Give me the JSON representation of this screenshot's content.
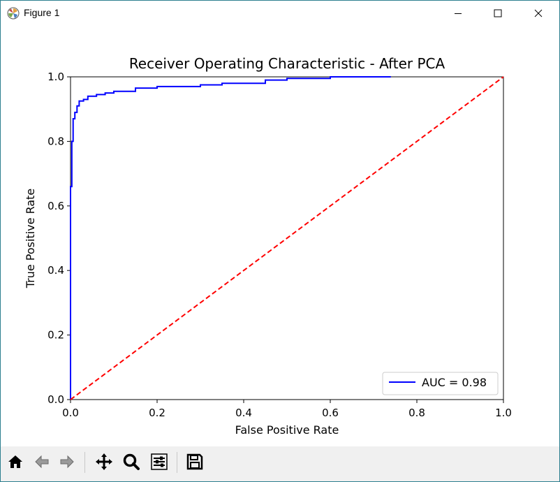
{
  "window": {
    "title": "Figure 1",
    "controls": [
      "minimize",
      "maximize",
      "close"
    ]
  },
  "toolbar": {
    "buttons": [
      "home-icon",
      "back-icon",
      "forward-icon",
      "pan-icon",
      "zoom-icon",
      "configure-subplots-icon",
      "save-icon"
    ]
  },
  "chart_data": {
    "type": "line",
    "title": "Receiver Operating Characteristic - After PCA",
    "xlabel": "False Positive Rate",
    "ylabel": "True Positive Rate",
    "xlim": [
      0.0,
      1.0
    ],
    "ylim": [
      0.0,
      1.0
    ],
    "xticks": [
      "0.0",
      "0.2",
      "0.4",
      "0.6",
      "0.8",
      "1.0"
    ],
    "yticks": [
      "0.0",
      "0.2",
      "0.4",
      "0.6",
      "0.8",
      "1.0"
    ],
    "grid": false,
    "legend_position": "lower-right",
    "series": [
      {
        "name": "AUC = 0.98",
        "color": "#0000ff",
        "style": "solid",
        "x": [
          0.0,
          0.0,
          0.003,
          0.003,
          0.006,
          0.006,
          0.01,
          0.01,
          0.015,
          0.015,
          0.02,
          0.02,
          0.03,
          0.03,
          0.04,
          0.04,
          0.06,
          0.06,
          0.08,
          0.08,
          0.1,
          0.1,
          0.15,
          0.15,
          0.2,
          0.2,
          0.3,
          0.3,
          0.35,
          0.35,
          0.45,
          0.45,
          0.5,
          0.5,
          0.6,
          0.6,
          0.74
        ],
        "y": [
          0.0,
          0.66,
          0.66,
          0.8,
          0.8,
          0.87,
          0.87,
          0.89,
          0.89,
          0.91,
          0.91,
          0.925,
          0.925,
          0.93,
          0.93,
          0.94,
          0.94,
          0.945,
          0.945,
          0.95,
          0.95,
          0.955,
          0.955,
          0.965,
          0.965,
          0.97,
          0.97,
          0.975,
          0.975,
          0.98,
          0.98,
          0.99,
          0.99,
          0.995,
          0.995,
          1.0,
          1.0
        ]
      },
      {
        "name": "",
        "color": "#ff0000",
        "style": "dashed",
        "x": [
          0.0,
          1.0
        ],
        "y": [
          0.0,
          1.0
        ]
      }
    ]
  }
}
